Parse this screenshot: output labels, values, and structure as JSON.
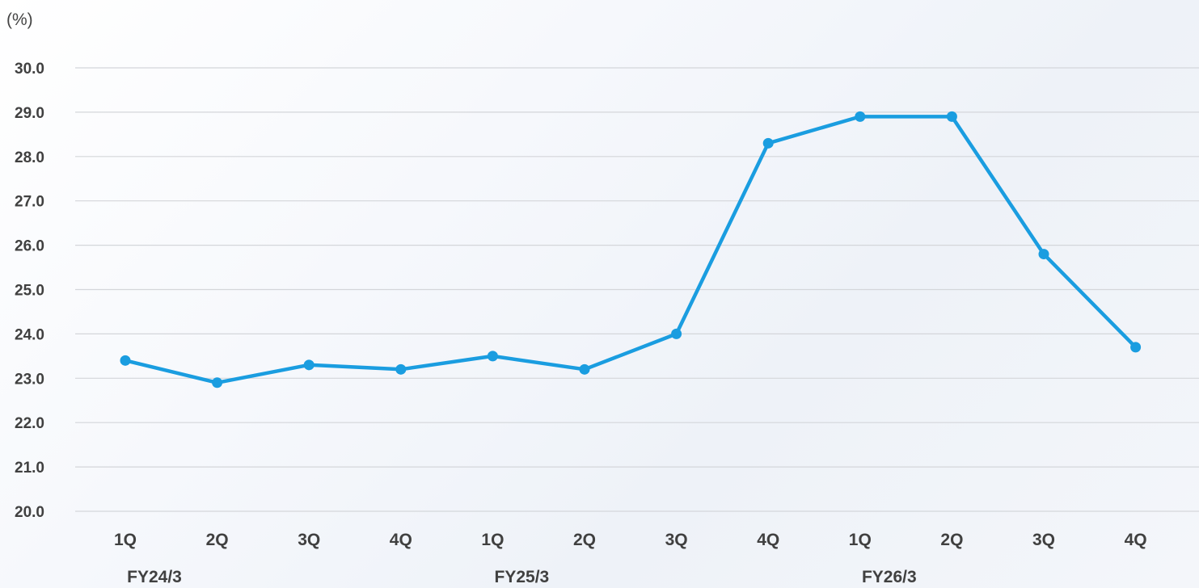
{
  "chart_data": {
    "type": "line",
    "unit_label": "(%)",
    "categories": [
      "1Q",
      "2Q",
      "3Q",
      "4Q",
      "1Q",
      "2Q",
      "3Q",
      "4Q",
      "1Q",
      "2Q",
      "3Q",
      "4Q"
    ],
    "groups": [
      {
        "label": "FY24/3",
        "categories": [
          0,
          1,
          2,
          3
        ]
      },
      {
        "label": "FY25/3",
        "categories": [
          4,
          5,
          6,
          7
        ]
      },
      {
        "label": "FY26/3",
        "categories": [
          8,
          9,
          10,
          11
        ]
      }
    ],
    "series": [
      {
        "values": [
          23.4,
          22.9,
          23.3,
          23.2,
          23.5,
          23.2,
          24.0,
          28.3,
          28.9,
          28.9,
          25.8,
          23.7
        ],
        "color": "#1a9de0"
      }
    ],
    "ylim": [
      20.0,
      30.0
    ],
    "yticks": [
      "20.0",
      "21.0",
      "22.0",
      "23.0",
      "24.0",
      "25.0",
      "26.0",
      "27.0",
      "28.0",
      "29.0",
      "30.0"
    ],
    "grid": true,
    "legend": "none"
  }
}
